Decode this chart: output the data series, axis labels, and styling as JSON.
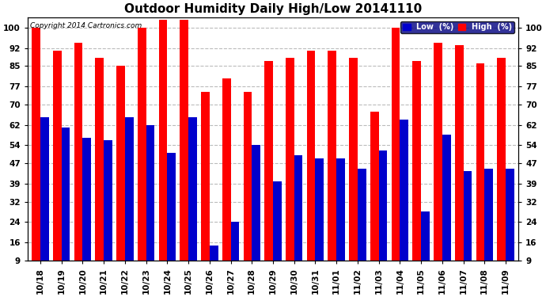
{
  "title": "Outdoor Humidity Daily High/Low 20141110",
  "copyright": "Copyright 2014 Cartronics.com",
  "categories": [
    "10/18",
    "10/19",
    "10/20",
    "10/21",
    "10/22",
    "10/23",
    "10/24",
    "10/25",
    "10/26",
    "10/27",
    "10/28",
    "10/29",
    "10/30",
    "10/31",
    "11/01",
    "11/02",
    "11/03",
    "11/04",
    "11/05",
    "11/06",
    "11/07",
    "11/08",
    "11/09"
  ],
  "high": [
    100,
    91,
    94,
    88,
    85,
    100,
    103,
    103,
    75,
    80,
    75,
    87,
    88,
    91,
    91,
    88,
    67,
    100,
    87,
    94,
    93,
    86,
    88
  ],
  "low": [
    65,
    61,
    57,
    56,
    65,
    62,
    51,
    65,
    15,
    24,
    54,
    40,
    50,
    49,
    49,
    45,
    52,
    64,
    28,
    58,
    44,
    45,
    45
  ],
  "high_color": "#ff0000",
  "low_color": "#0000cc",
  "bg_color": "#ffffff",
  "grid_color": "#bbbbbb",
  "yticks": [
    9,
    16,
    24,
    32,
    39,
    47,
    54,
    62,
    70,
    77,
    85,
    92,
    100
  ],
  "ymin": 9,
  "ymax": 104,
  "title_fontsize": 11,
  "tick_fontsize": 7.5,
  "legend_fontsize": 7
}
